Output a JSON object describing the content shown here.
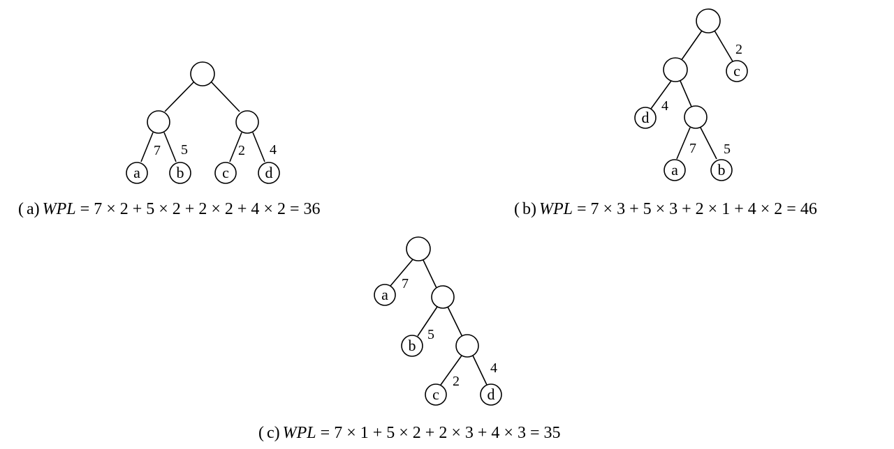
{
  "trees": [
    {
      "id": "a",
      "caption": {
        "paren_open": "(",
        "letter": "a",
        "paren_close": ")",
        "wpl_label": "WPL",
        "formula": "= 7 × 2 + 5 × 2 + 2 × 2 + 4 × 2 = 36"
      },
      "leaves": [
        "a",
        "b",
        "c",
        "d"
      ],
      "weights": [
        "7",
        "5",
        "2",
        "4"
      ]
    },
    {
      "id": "b",
      "caption": {
        "paren_open": "(",
        "letter": "b",
        "paren_close": ")",
        "wpl_label": "WPL",
        "formula": "= 7 × 3 + 5 × 3 + 2 × 1 + 4 × 2 = 46"
      },
      "leaves": [
        "c",
        "d",
        "a",
        "b"
      ],
      "weights": [
        "2",
        "4",
        "7",
        "5"
      ]
    },
    {
      "id": "c",
      "caption": {
        "paren_open": "(",
        "letter": "c",
        "paren_close": ")",
        "wpl_label": "WPL",
        "formula": "= 7 × 1 + 5 × 2 + 2 × 3 + 4 × 3 = 35"
      },
      "leaves": [
        "a",
        "b",
        "c",
        "d"
      ],
      "weights": [
        "7",
        "5",
        "2",
        "4"
      ]
    }
  ]
}
